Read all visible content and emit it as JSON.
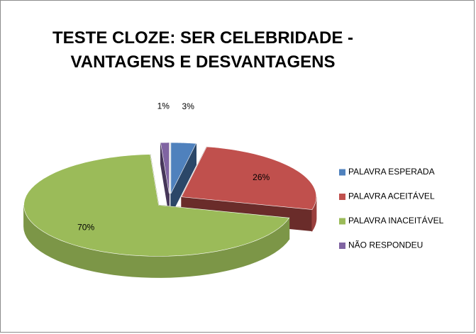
{
  "chart_data": {
    "type": "pie3d",
    "title": "TESTE CLOZE: SER CELEBRIDADE - VANTAGENS E DESVANTAGENS",
    "categories": [
      "PALAVRA ESPERADA",
      "PALAVRA ACEITÁVEL",
      "PALAVRA INACEITÁVEL",
      "NÃO RESPONDEU"
    ],
    "values": [
      3,
      26,
      70,
      1
    ],
    "value_labels": [
      "3%",
      "26%",
      "70%",
      "1%"
    ],
    "colors": [
      "#4f81bd",
      "#c0504d",
      "#9bbb59",
      "#8064a2"
    ],
    "legend": "right"
  }
}
